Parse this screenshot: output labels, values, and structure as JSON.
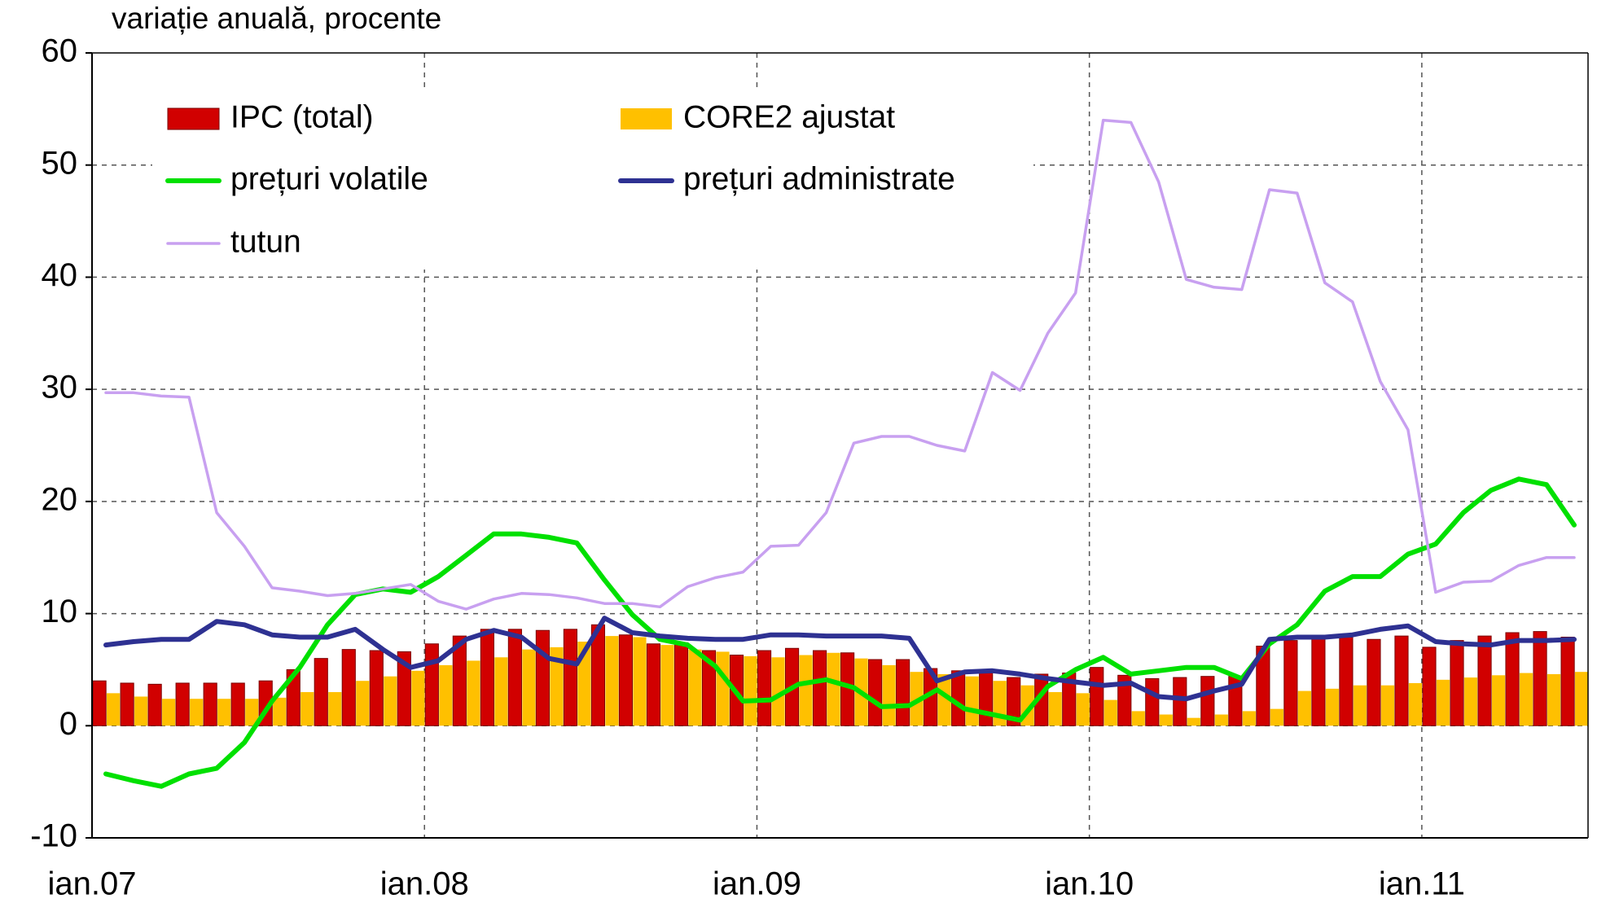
{
  "chart_data": {
    "type": "bar_line",
    "title": "variație anuală, procente",
    "categories": [
      "ian.07",
      null,
      null,
      null,
      null,
      null,
      null,
      null,
      null,
      null,
      null,
      null,
      "ian.08",
      null,
      null,
      null,
      null,
      null,
      null,
      null,
      null,
      null,
      null,
      null,
      "ian.09",
      null,
      null,
      null,
      null,
      null,
      null,
      null,
      null,
      null,
      null,
      null,
      "ian.10",
      null,
      null,
      null,
      null,
      null,
      null,
      null,
      null,
      null,
      null,
      null,
      "ian.11",
      null,
      null,
      null,
      null,
      null
    ],
    "series": [
      {
        "name": "IPC (total)",
        "kind": "bar",
        "color": "#d10000",
        "values": [
          4.0,
          3.8,
          3.7,
          3.8,
          3.8,
          3.8,
          4.0,
          5.0,
          6.0,
          6.8,
          6.7,
          6.6,
          7.3,
          8.0,
          8.6,
          8.6,
          8.5,
          8.6,
          9.0,
          8.1,
          7.3,
          7.4,
          6.7,
          6.3,
          6.7,
          6.9,
          6.7,
          6.5,
          5.9,
          5.9,
          5.1,
          4.9,
          4.9,
          4.3,
          4.6,
          4.7,
          5.2,
          4.5,
          4.2,
          4.3,
          4.4,
          4.4,
          7.1,
          7.6,
          7.8,
          7.9,
          7.7,
          8.0,
          7.0,
          7.6,
          8.0,
          8.3,
          8.4,
          7.9
        ]
      },
      {
        "name": "CORE2 ajustat",
        "kind": "bar",
        "color": "#ffc000",
        "values": [
          2.9,
          2.6,
          2.4,
          2.4,
          2.4,
          2.4,
          2.5,
          3.0,
          3.0,
          4.0,
          4.4,
          4.9,
          5.4,
          5.8,
          6.1,
          6.8,
          7.0,
          7.5,
          8.0,
          7.9,
          7.2,
          6.8,
          6.6,
          6.2,
          6.1,
          6.3,
          6.5,
          6.0,
          5.4,
          4.8,
          4.6,
          4.4,
          4.0,
          3.6,
          3.0,
          2.9,
          2.3,
          1.3,
          1.0,
          0.7,
          1.0,
          1.3,
          1.5,
          3.1,
          3.3,
          3.6,
          3.6,
          3.8,
          4.1,
          4.3,
          4.5,
          4.7,
          4.6,
          4.8
        ]
      },
      {
        "name": "prețuri volatile",
        "kind": "line",
        "color": "#00e000",
        "width": 6,
        "values": [
          -4.3,
          -4.9,
          -5.4,
          -4.3,
          -3.8,
          -1.5,
          2.2,
          5.2,
          9.0,
          11.7,
          12.2,
          11.9,
          13.3,
          15.2,
          17.1,
          17.1,
          16.8,
          16.3,
          13.0,
          9.9,
          7.7,
          7.2,
          5.3,
          2.2,
          2.3,
          3.7,
          4.1,
          3.4,
          1.7,
          1.8,
          3.2,
          1.5,
          1.0,
          0.5,
          3.5,
          5.0,
          6.1,
          4.6,
          4.9,
          5.2,
          5.2,
          4.2,
          7.3,
          9.0,
          12.0,
          13.3,
          13.3,
          15.3,
          16.2,
          19.0,
          21.0,
          22.0,
          21.5,
          17.9
        ]
      },
      {
        "name": "prețuri administrate",
        "kind": "line",
        "color": "#2e3192",
        "width": 6,
        "values": [
          7.2,
          7.5,
          7.7,
          7.7,
          9.3,
          9.0,
          8.1,
          7.9,
          7.9,
          8.6,
          6.8,
          5.2,
          5.8,
          7.7,
          8.5,
          7.9,
          6.0,
          5.5,
          9.6,
          8.3,
          8.0,
          7.8,
          7.7,
          7.7,
          8.1,
          8.1,
          8.0,
          8.0,
          8.0,
          7.8,
          4.0,
          4.8,
          4.9,
          4.6,
          4.2,
          3.9,
          3.6,
          3.8,
          2.6,
          2.4,
          3.1,
          3.7,
          7.7,
          7.9,
          7.9,
          8.1,
          8.6,
          8.9,
          7.5,
          7.3,
          7.2,
          7.6,
          7.6,
          7.7
        ]
      },
      {
        "name": "tutun",
        "kind": "line",
        "color": "#c8a0f0",
        "width": 3.5,
        "values": [
          29.7,
          29.7,
          29.4,
          29.3,
          19.0,
          16.0,
          12.3,
          12.0,
          11.6,
          11.8,
          12.2,
          12.6,
          11.1,
          10.4,
          11.3,
          11.8,
          11.7,
          11.4,
          10.9,
          10.9,
          10.6,
          12.4,
          13.2,
          13.7,
          16.0,
          16.1,
          19.0,
          25.2,
          25.8,
          25.8,
          25.0,
          24.5,
          31.5,
          29.9,
          35.0,
          38.6,
          54.0,
          53.8,
          48.5,
          39.8,
          39.1,
          38.9,
          47.8,
          47.5,
          39.5,
          37.8,
          30.7,
          26.4,
          11.9,
          12.8,
          12.9,
          14.3,
          15.0,
          15.0
        ]
      }
    ],
    "ylim": [
      -10,
      60
    ],
    "yticks": [
      -10,
      0,
      10,
      20,
      30,
      40,
      50,
      60
    ],
    "grid": true
  }
}
